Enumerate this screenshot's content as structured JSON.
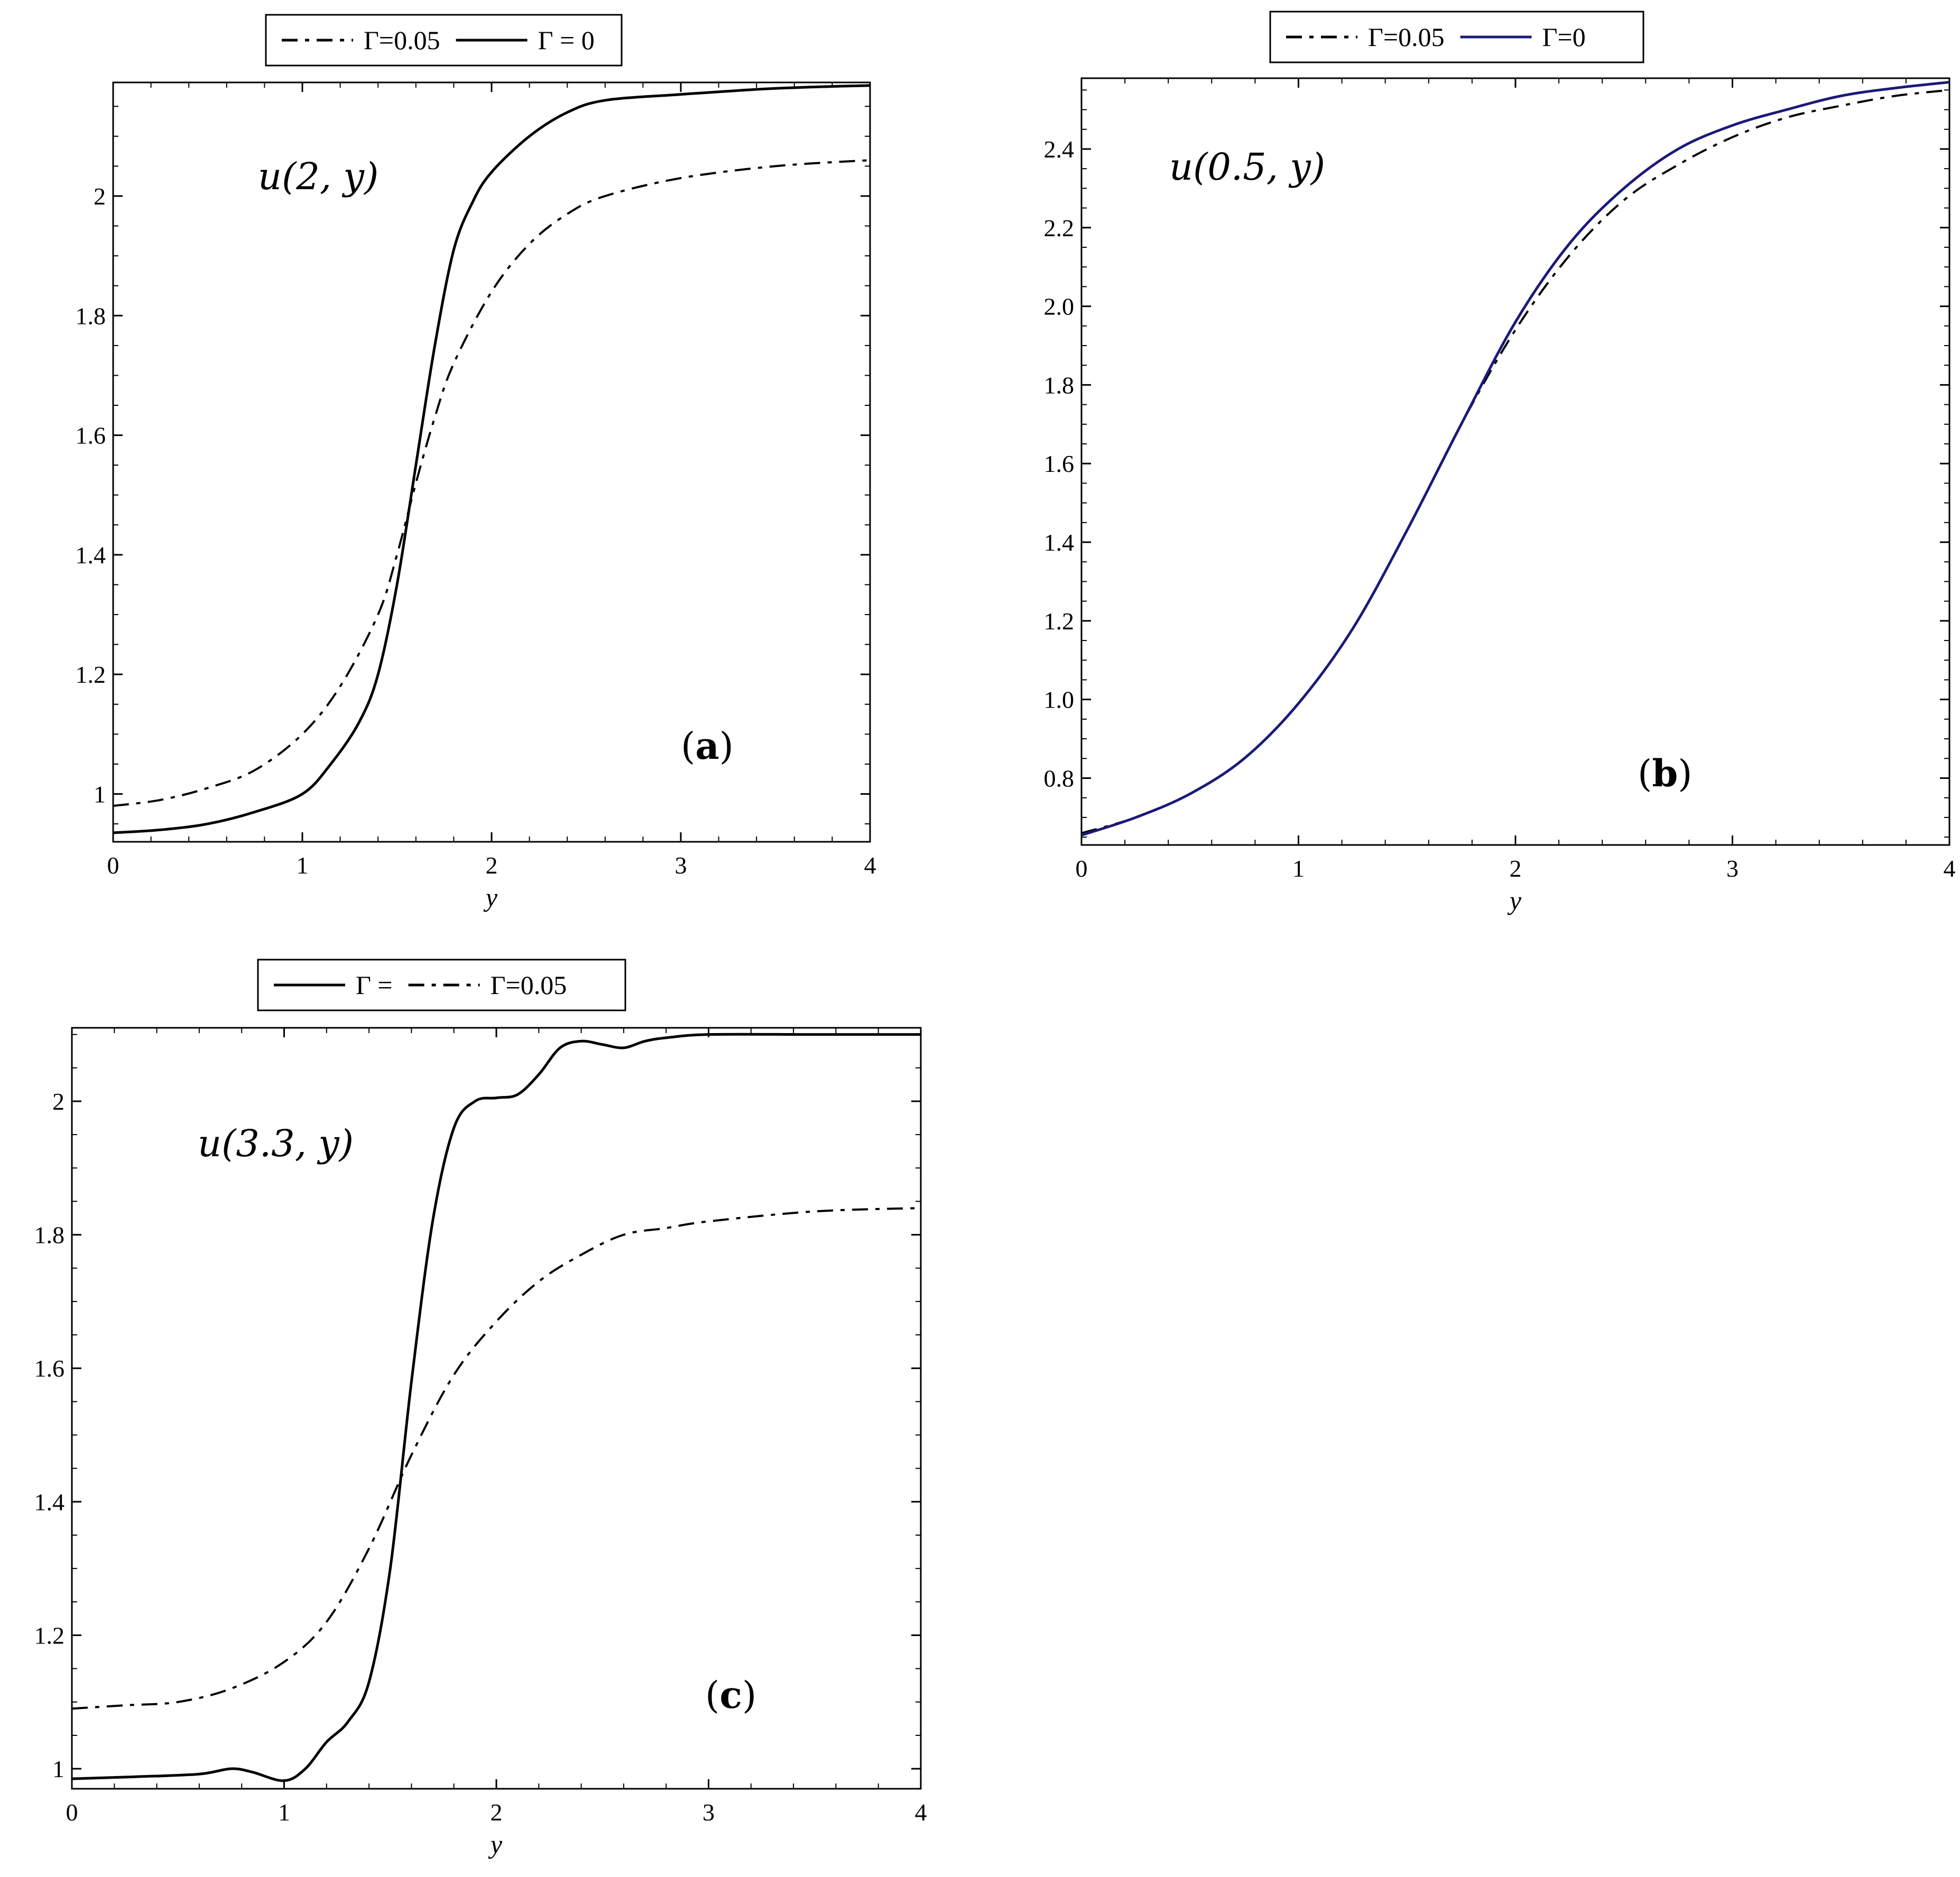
{
  "chart_data": [
    {
      "id": "a",
      "type": "line",
      "title": "",
      "xlabel": "y",
      "ylabel": "",
      "xlim": [
        0,
        4
      ],
      "ylim": [
        0.92,
        2.19
      ],
      "xticks": [
        0,
        1,
        2,
        3,
        4
      ],
      "xtick_labels": [
        "0",
        "1",
        "2",
        "3",
        "4"
      ],
      "yticks": [
        1,
        1.2,
        1.4,
        1.6,
        1.8,
        2
      ],
      "ytick_labels": [
        "1",
        "1.2",
        "1.4",
        "1.6",
        "1.8",
        "2"
      ],
      "annotation_function": "u(2, y)",
      "panel_label_open": "(",
      "panel_label_letter": "a",
      "panel_label_close": ")",
      "legend_position": "top",
      "grid": false,
      "series": [
        {
          "name": "Γ=0.05",
          "style": "dashdot",
          "color": "#000000",
          "x": [
            0,
            0.25,
            0.5,
            0.75,
            1.0,
            1.2,
            1.4,
            1.5,
            1.6,
            1.7,
            1.8,
            2.0,
            2.2,
            2.4,
            2.6,
            3.0,
            3.5,
            4.0
          ],
          "y": [
            0.98,
            0.99,
            1.01,
            1.04,
            1.1,
            1.18,
            1.3,
            1.4,
            1.52,
            1.63,
            1.72,
            1.84,
            1.92,
            1.97,
            2.0,
            2.03,
            2.05,
            2.06
          ]
        },
        {
          "name": "Γ = 0",
          "style": "solid",
          "color": "#000000",
          "x": [
            0,
            0.25,
            0.5,
            0.75,
            1.0,
            1.15,
            1.3,
            1.4,
            1.5,
            1.6,
            1.7,
            1.8,
            1.9,
            2.0,
            2.2,
            2.4,
            2.6,
            3.0,
            3.5,
            4.0
          ],
          "y": [
            0.935,
            0.94,
            0.95,
            0.97,
            1.0,
            1.05,
            1.12,
            1.2,
            1.35,
            1.55,
            1.75,
            1.91,
            1.99,
            2.04,
            2.1,
            2.14,
            2.16,
            2.17,
            2.18,
            2.185
          ]
        }
      ]
    },
    {
      "id": "b",
      "type": "line",
      "title": "",
      "xlabel": "y",
      "ylabel": "",
      "xlim": [
        0,
        4
      ],
      "ylim": [
        0.63,
        2.58
      ],
      "xticks": [
        0,
        1,
        2,
        3,
        4
      ],
      "xtick_labels": [
        "0",
        "1",
        "2",
        "3",
        "4"
      ],
      "yticks": [
        0.8,
        1.0,
        1.2,
        1.4,
        1.6,
        1.8,
        2.0,
        2.2,
        2.4
      ],
      "ytick_labels": [
        "0.8",
        "1.0",
        "1.2",
        "1.4",
        "1.6",
        "1.8",
        "2.0",
        "2.2",
        "2.4"
      ],
      "annotation_function": "u(0.5, y)",
      "panel_label_open": "(",
      "panel_label_letter": "b",
      "panel_label_close": ")",
      "legend_position": "top",
      "grid": false,
      "series": [
        {
          "name": "Γ=0.05",
          "style": "dashdot",
          "color": "#000000",
          "x": [
            0,
            0.25,
            0.5,
            0.75,
            1.0,
            1.25,
            1.5,
            1.75,
            2.0,
            2.25,
            2.5,
            2.75,
            3.0,
            3.25,
            3.5,
            3.75,
            4.0
          ],
          "y": [
            0.66,
            0.7,
            0.76,
            0.85,
            0.99,
            1.18,
            1.43,
            1.7,
            1.94,
            2.13,
            2.27,
            2.36,
            2.43,
            2.48,
            2.51,
            2.535,
            2.55
          ]
        },
        {
          "name": "Γ=0",
          "style": "solid",
          "color": "#1a1a7a",
          "x": [
            0,
            0.25,
            0.5,
            0.75,
            1.0,
            1.25,
            1.5,
            1.75,
            2.0,
            2.25,
            2.5,
            2.75,
            3.0,
            3.25,
            3.5,
            3.75,
            4.0
          ],
          "y": [
            0.655,
            0.7,
            0.76,
            0.85,
            0.99,
            1.18,
            1.43,
            1.7,
            1.96,
            2.16,
            2.3,
            2.4,
            2.46,
            2.5,
            2.535,
            2.555,
            2.57
          ]
        }
      ]
    },
    {
      "id": "c",
      "type": "line",
      "title": "",
      "xlabel": "y",
      "ylabel": "",
      "xlim": [
        0,
        4
      ],
      "ylim": [
        0.97,
        2.11
      ],
      "xticks": [
        0,
        1,
        2,
        3,
        4
      ],
      "xtick_labels": [
        "0",
        "1",
        "2",
        "3",
        "4"
      ],
      "yticks": [
        1,
        1.2,
        1.4,
        1.6,
        1.8,
        2
      ],
      "ytick_labels": [
        "1",
        "1.2",
        "1.4",
        "1.6",
        "1.8",
        "2"
      ],
      "annotation_function": "u(3.3, y)",
      "panel_label_open": "(",
      "panel_label_letter": "c",
      "panel_label_close": ")",
      "legend_position": "top",
      "grid": false,
      "series": [
        {
          "name": "Γ =",
          "style": "solid",
          "color": "#000000",
          "x": [
            0,
            0.3,
            0.6,
            0.75,
            0.85,
            1.0,
            1.1,
            1.2,
            1.3,
            1.4,
            1.5,
            1.6,
            1.7,
            1.8,
            1.9,
            2.0,
            2.1,
            2.2,
            2.3,
            2.4,
            2.5,
            2.6,
            2.7,
            2.8,
            3.0,
            3.5,
            4.0
          ],
          "y": [
            0.985,
            0.988,
            0.992,
            1.0,
            0.995,
            0.982,
            1.0,
            1.04,
            1.07,
            1.13,
            1.3,
            1.58,
            1.82,
            1.96,
            2.0,
            2.005,
            2.01,
            2.04,
            2.08,
            2.09,
            2.085,
            2.08,
            2.09,
            2.095,
            2.1,
            2.1,
            2.1
          ]
        },
        {
          "name": "Γ=0.05",
          "style": "dashdot",
          "color": "#000000",
          "x": [
            0,
            0.25,
            0.5,
            0.75,
            1.0,
            1.2,
            1.4,
            1.6,
            1.8,
            2.0,
            2.2,
            2.4,
            2.6,
            2.8,
            3.0,
            3.5,
            4.0
          ],
          "y": [
            1.09,
            1.095,
            1.1,
            1.12,
            1.16,
            1.22,
            1.33,
            1.47,
            1.59,
            1.67,
            1.73,
            1.77,
            1.8,
            1.81,
            1.82,
            1.835,
            1.84
          ]
        }
      ]
    }
  ]
}
